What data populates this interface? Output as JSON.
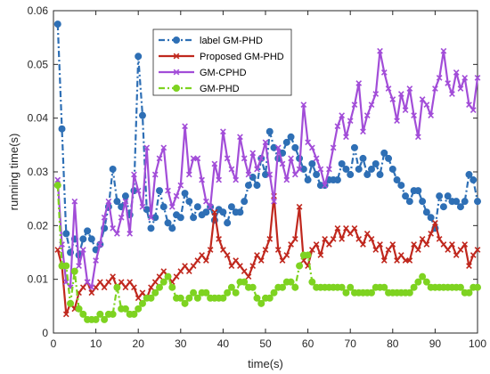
{
  "chart_data": {
    "type": "line",
    "title": "",
    "xlabel": "time(s)",
    "ylabel": "running time(s)",
    "xlim": [
      0,
      100
    ],
    "ylim": [
      0,
      0.06
    ],
    "xticks": [
      0,
      10,
      20,
      30,
      40,
      50,
      60,
      70,
      80,
      90,
      100
    ],
    "yticks": [
      0,
      0.01,
      0.02,
      0.03,
      0.04,
      0.05,
      0.06
    ],
    "grid": false,
    "legend_position": "top-left",
    "series": [
      {
        "name": "label GM-PHD",
        "color": "#2e6fb5",
        "marker": "circle",
        "line": "dashdot",
        "x": [
          1,
          2,
          3,
          4,
          5,
          6,
          7,
          8,
          9,
          10,
          11,
          12,
          13,
          14,
          15,
          16,
          17,
          18,
          19,
          20,
          21,
          22,
          23,
          24,
          25,
          26,
          27,
          28,
          29,
          30,
          31,
          32,
          33,
          34,
          35,
          36,
          37,
          38,
          39,
          40,
          41,
          42,
          43,
          44,
          45,
          46,
          47,
          48,
          49,
          50,
          51,
          52,
          53,
          54,
          55,
          56,
          57,
          58,
          59,
          60,
          61,
          62,
          63,
          64,
          65,
          66,
          67,
          68,
          69,
          70,
          71,
          72,
          73,
          74,
          75,
          76,
          77,
          78,
          79,
          80,
          81,
          82,
          83,
          84,
          85,
          86,
          87,
          88,
          89,
          90,
          91,
          92,
          93,
          94,
          95,
          96,
          97,
          98,
          99,
          100
        ],
        "y": [
          0.0575,
          0.038,
          0.0185,
          0.015,
          0.0175,
          0.0145,
          0.0175,
          0.019,
          0.0175,
          0.0155,
          0.0165,
          0.0195,
          0.0235,
          0.0305,
          0.0245,
          0.0235,
          0.0255,
          0.022,
          0.0265,
          0.0515,
          0.0405,
          0.023,
          0.0195,
          0.0215,
          0.0265,
          0.0235,
          0.0205,
          0.0195,
          0.022,
          0.0215,
          0.026,
          0.0245,
          0.0215,
          0.0235,
          0.022,
          0.0225,
          0.0235,
          0.021,
          0.023,
          0.0225,
          0.0205,
          0.0235,
          0.0225,
          0.0225,
          0.0245,
          0.0275,
          0.029,
          0.0275,
          0.0325,
          0.0295,
          0.0375,
          0.0345,
          0.0325,
          0.0335,
          0.0355,
          0.0365,
          0.0345,
          0.0325,
          0.0305,
          0.0285,
          0.0315,
          0.0295,
          0.0275,
          0.0275,
          0.0285,
          0.0285,
          0.0285,
          0.0315,
          0.0305,
          0.0295,
          0.0345,
          0.0305,
          0.0325,
          0.0295,
          0.0305,
          0.0315,
          0.0295,
          0.0335,
          0.0325,
          0.0305,
          0.0285,
          0.0275,
          0.0255,
          0.0245,
          0.0265,
          0.0265,
          0.0245,
          0.0225,
          0.0215,
          0.0195,
          0.0255,
          0.0235,
          0.0255,
          0.0245,
          0.0245,
          0.0235,
          0.0245,
          0.0295,
          0.0285,
          0.0245
        ]
      },
      {
        "name": "Proposed GM-PHD",
        "color": "#c0281e",
        "marker": "x",
        "line": "solid",
        "x": [
          1,
          2,
          3,
          4,
          5,
          6,
          7,
          8,
          9,
          10,
          11,
          12,
          13,
          14,
          15,
          16,
          17,
          18,
          19,
          20,
          21,
          22,
          23,
          24,
          25,
          26,
          27,
          28,
          29,
          30,
          31,
          32,
          33,
          34,
          35,
          36,
          37,
          38,
          39,
          40,
          41,
          42,
          43,
          44,
          45,
          46,
          47,
          48,
          49,
          50,
          51,
          52,
          53,
          54,
          55,
          56,
          57,
          58,
          59,
          60,
          61,
          62,
          63,
          64,
          65,
          66,
          67,
          68,
          69,
          70,
          71,
          72,
          73,
          74,
          75,
          76,
          77,
          78,
          79,
          80,
          81,
          82,
          83,
          84,
          85,
          86,
          87,
          88,
          89,
          90,
          91,
          92,
          93,
          94,
          95,
          96,
          97,
          98,
          99,
          100
        ],
        "y": [
          0.0155,
          0.0125,
          0.0035,
          0.0055,
          0.0045,
          0.0075,
          0.0085,
          0.0095,
          0.0075,
          0.0085,
          0.0095,
          0.0085,
          0.0095,
          0.0105,
          0.0085,
          0.0095,
          0.0085,
          0.0095,
          0.0085,
          0.0065,
          0.0075,
          0.0065,
          0.0085,
          0.0095,
          0.0105,
          0.0115,
          0.0105,
          0.0095,
          0.0105,
          0.0115,
          0.0125,
          0.0115,
          0.0125,
          0.0135,
          0.0145,
          0.0135,
          0.0155,
          0.0225,
          0.0175,
          0.0155,
          0.0145,
          0.0125,
          0.0135,
          0.0125,
          0.0115,
          0.0105,
          0.0125,
          0.0145,
          0.0135,
          0.0155,
          0.0175,
          0.0255,
          0.0155,
          0.0135,
          0.0145,
          0.0165,
          0.0175,
          0.0235,
          0.0135,
          0.0125,
          0.0155,
          0.0165,
          0.0145,
          0.0175,
          0.0165,
          0.0175,
          0.0195,
          0.0175,
          0.0195,
          0.0185,
          0.0195,
          0.0175,
          0.0165,
          0.0185,
          0.0175,
          0.0155,
          0.0165,
          0.0135,
          0.0155,
          0.0165,
          0.0135,
          0.0145,
          0.0135,
          0.0135,
          0.0165,
          0.0155,
          0.0175,
          0.0165,
          0.0185,
          0.0205,
          0.0175,
          0.0165,
          0.0155,
          0.0165,
          0.0145,
          0.0155,
          0.0165,
          0.0125,
          0.0145,
          0.0155
        ]
      },
      {
        "name": "GM-CPHD",
        "color": "#a24dd8",
        "marker": "x",
        "line": "solid",
        "x": [
          1,
          2,
          3,
          4,
          5,
          6,
          7,
          8,
          9,
          10,
          11,
          12,
          13,
          14,
          15,
          16,
          17,
          18,
          19,
          20,
          21,
          22,
          23,
          24,
          25,
          26,
          27,
          28,
          29,
          30,
          31,
          32,
          33,
          34,
          35,
          36,
          37,
          38,
          39,
          40,
          41,
          42,
          43,
          44,
          45,
          46,
          47,
          48,
          49,
          50,
          51,
          52,
          53,
          54,
          55,
          56,
          57,
          58,
          59,
          60,
          61,
          62,
          63,
          64,
          65,
          66,
          67,
          68,
          69,
          70,
          71,
          72,
          73,
          74,
          75,
          76,
          77,
          78,
          79,
          80,
          81,
          82,
          83,
          84,
          85,
          86,
          87,
          88,
          89,
          90,
          91,
          92,
          93,
          94,
          95,
          96,
          97,
          98,
          99,
          100
        ],
        "y": [
          0.0285,
          0.0165,
          0.0095,
          0.0085,
          0.0245,
          0.0125,
          0.0155,
          0.0095,
          0.0085,
          0.0135,
          0.0165,
          0.0215,
          0.0245,
          0.0195,
          0.0185,
          0.0215,
          0.0245,
          0.0185,
          0.0295,
          0.0265,
          0.0235,
          0.0345,
          0.0215,
          0.0295,
          0.0325,
          0.0345,
          0.0265,
          0.0235,
          0.0255,
          0.0275,
          0.0385,
          0.0295,
          0.0325,
          0.0325,
          0.0285,
          0.0245,
          0.0235,
          0.0315,
          0.0285,
          0.0375,
          0.0325,
          0.0305,
          0.0285,
          0.0365,
          0.0325,
          0.0295,
          0.0335,
          0.0305,
          0.0325,
          0.0355,
          0.0295,
          0.0245,
          0.0345,
          0.0315,
          0.0285,
          0.0325,
          0.0295,
          0.0305,
          0.0425,
          0.0355,
          0.0345,
          0.0325,
          0.0305,
          0.0275,
          0.0305,
          0.0345,
          0.0385,
          0.0405,
          0.0365,
          0.0395,
          0.0425,
          0.0465,
          0.0375,
          0.0405,
          0.0425,
          0.0445,
          0.0525,
          0.0485,
          0.0455,
          0.0435,
          0.0395,
          0.0445,
          0.0415,
          0.0455,
          0.0405,
          0.0365,
          0.0435,
          0.0425,
          0.0405,
          0.0455,
          0.0475,
          0.0525,
          0.0465,
          0.0445,
          0.0485,
          0.0455,
          0.0475,
          0.0425,
          0.0415,
          0.0475
        ]
      },
      {
        "name": "GM-PHD",
        "color": "#7ed321",
        "marker": "circle",
        "line": "dashdot",
        "x": [
          1,
          2,
          3,
          4,
          5,
          6,
          7,
          8,
          9,
          10,
          11,
          12,
          13,
          14,
          15,
          16,
          17,
          18,
          19,
          20,
          21,
          22,
          23,
          24,
          25,
          26,
          27,
          28,
          29,
          30,
          31,
          32,
          33,
          34,
          35,
          36,
          37,
          38,
          39,
          40,
          41,
          42,
          43,
          44,
          45,
          46,
          47,
          48,
          49,
          50,
          51,
          52,
          53,
          54,
          55,
          56,
          57,
          58,
          59,
          60,
          61,
          62,
          63,
          64,
          65,
          66,
          67,
          68,
          69,
          70,
          71,
          72,
          73,
          74,
          75,
          76,
          77,
          78,
          79,
          80,
          81,
          82,
          83,
          84,
          85,
          86,
          87,
          88,
          89,
          90,
          91,
          92,
          93,
          94,
          95,
          96,
          97,
          98,
          99,
          100
        ],
        "y": [
          0.0275,
          0.0125,
          0.0125,
          0.0055,
          0.0115,
          0.0045,
          0.0035,
          0.0025,
          0.0025,
          0.0025,
          0.0035,
          0.0025,
          0.0035,
          0.0035,
          0.0085,
          0.0045,
          0.0045,
          0.0035,
          0.0035,
          0.0045,
          0.0055,
          0.0065,
          0.0065,
          0.0075,
          0.0085,
          0.0095,
          0.0105,
          0.0085,
          0.0065,
          0.0065,
          0.0055,
          0.0065,
          0.0075,
          0.0065,
          0.0075,
          0.0075,
          0.0065,
          0.0065,
          0.0065,
          0.0065,
          0.0075,
          0.0085,
          0.0075,
          0.0095,
          0.0095,
          0.0085,
          0.0085,
          0.0065,
          0.0055,
          0.0065,
          0.0065,
          0.0075,
          0.0085,
          0.0085,
          0.0095,
          0.0095,
          0.0085,
          0.0125,
          0.0145,
          0.0145,
          0.0095,
          0.0085,
          0.0085,
          0.0085,
          0.0085,
          0.0085,
          0.0085,
          0.0085,
          0.0075,
          0.0085,
          0.0075,
          0.0075,
          0.0075,
          0.0075,
          0.0075,
          0.0085,
          0.0085,
          0.0085,
          0.0075,
          0.0075,
          0.0075,
          0.0075,
          0.0075,
          0.0075,
          0.0085,
          0.0095,
          0.0105,
          0.0095,
          0.0085,
          0.0085,
          0.0085,
          0.0085,
          0.0085,
          0.0085,
          0.0085,
          0.0085,
          0.0075,
          0.0075,
          0.0085,
          0.0085
        ]
      }
    ]
  }
}
